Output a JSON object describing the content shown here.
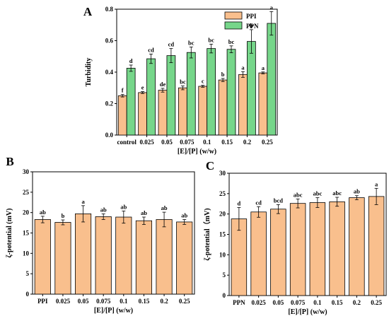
{
  "chart_data": [
    {
      "panel": "A",
      "type": "bar",
      "categories": [
        "control",
        "0.025",
        "0.05",
        "0.075",
        "0.1",
        "0.15",
        "0.2",
        "0.25"
      ],
      "series": [
        {
          "name": "PPI",
          "color": "#f9bf8d",
          "values": [
            0.25,
            0.27,
            0.285,
            0.3,
            0.31,
            0.35,
            0.385,
            0.395
          ],
          "errors": [
            0.008,
            0.006,
            0.012,
            0.012,
            0.006,
            0.01,
            0.018,
            0.006
          ],
          "labels": [
            "f",
            "e",
            "de",
            "bc",
            "c",
            "b",
            "a",
            "a"
          ]
        },
        {
          "name": "PPN",
          "color": "#76d68a",
          "values": [
            0.425,
            0.485,
            0.505,
            0.525,
            0.55,
            0.545,
            0.595,
            0.71
          ],
          "errors": [
            0.02,
            0.03,
            0.045,
            0.035,
            0.028,
            0.022,
            0.075,
            0.075
          ],
          "labels": [
            "d",
            "cd",
            "cd",
            "bc",
            "bc",
            "bc",
            "b",
            "a"
          ]
        }
      ],
      "xlabel": "[E]/[P] (w/w)",
      "ylabel": "Turbidity",
      "ylim": [
        0.0,
        0.8
      ],
      "yticks": [
        "0.0",
        "0.2",
        "0.4",
        "0.6",
        "0.8"
      ],
      "legend": "top-left"
    },
    {
      "panel": "B",
      "type": "bar",
      "categories": [
        "PPI",
        "0.025",
        "0.05",
        "0.075",
        "0.1",
        "0.15",
        "0.2",
        "0.25"
      ],
      "series": [
        {
          "color": "#f9bf8d",
          "values": [
            18.3,
            17.6,
            19.7,
            19.0,
            18.9,
            18.0,
            18.3,
            17.7
          ],
          "errors": [
            0.8,
            0.6,
            2.0,
            0.7,
            1.5,
            0.9,
            1.8,
            0.6
          ],
          "labels": [
            "ab",
            "b",
            "a",
            "ab",
            "ab",
            "ab",
            "ab",
            "ab"
          ]
        }
      ],
      "xlabel": "[E]/[P] (w/w)",
      "ylabel": "ζ-potential (mV)",
      "ylim": [
        0,
        30
      ],
      "yticks": [
        "0",
        "5",
        "10",
        "15",
        "20",
        "25",
        "30"
      ]
    },
    {
      "panel": "C",
      "type": "bar",
      "categories": [
        "PPN",
        "0.025",
        "0.05",
        "0.075",
        "0.1",
        "0.15",
        "0.2",
        "0.25"
      ],
      "series": [
        {
          "color": "#f9bf8d",
          "values": [
            18.8,
            20.5,
            21.2,
            22.6,
            22.8,
            23.0,
            24.0,
            24.3
          ],
          "errors": [
            2.8,
            1.3,
            1.1,
            1.1,
            1.2,
            1.1,
            0.5,
            2.0
          ],
          "labels": [
            "d",
            "cd",
            "bcd",
            "abc",
            "abc",
            "abc",
            "ab",
            "a"
          ]
        }
      ],
      "xlabel": "[E]/[P] (w/w)",
      "ylabel": "ζ-potential（mV)",
      "ylim": [
        0,
        30
      ],
      "yticks": [
        "0",
        "5",
        "10",
        "15",
        "20",
        "25",
        "30"
      ]
    }
  ]
}
